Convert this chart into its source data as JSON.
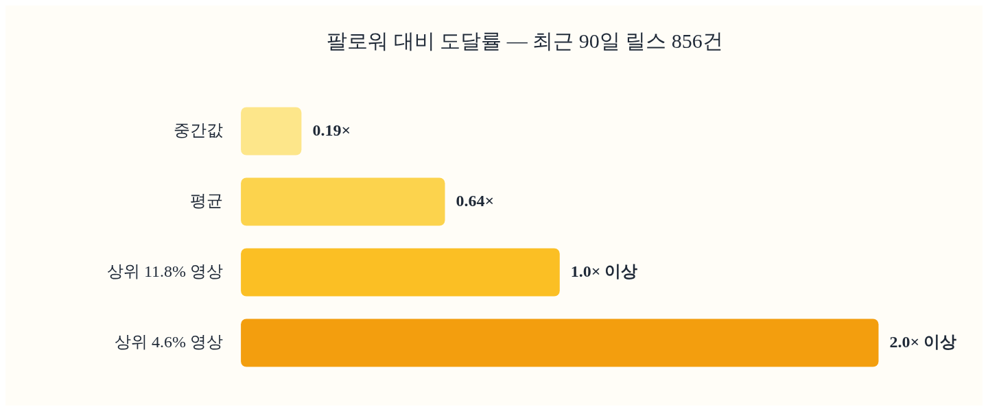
{
  "chart_data": {
    "type": "bar",
    "orientation": "horizontal",
    "title": "팔로워 대비 도달률 — 최근 90일 릴스 856건",
    "categories": [
      "중간값",
      "평균",
      "상위 11.8% 영상",
      "상위 4.6% 영상"
    ],
    "values": [
      0.19,
      0.64,
      1.0,
      2.0
    ],
    "colors": [
      "#fde68a",
      "#fcd34d",
      "#fbbf24",
      "#f39e0e"
    ],
    "value_labels": [
      "0.19×",
      "0.64×",
      "1.0× 이상",
      "2.0× 이상"
    ]
  }
}
